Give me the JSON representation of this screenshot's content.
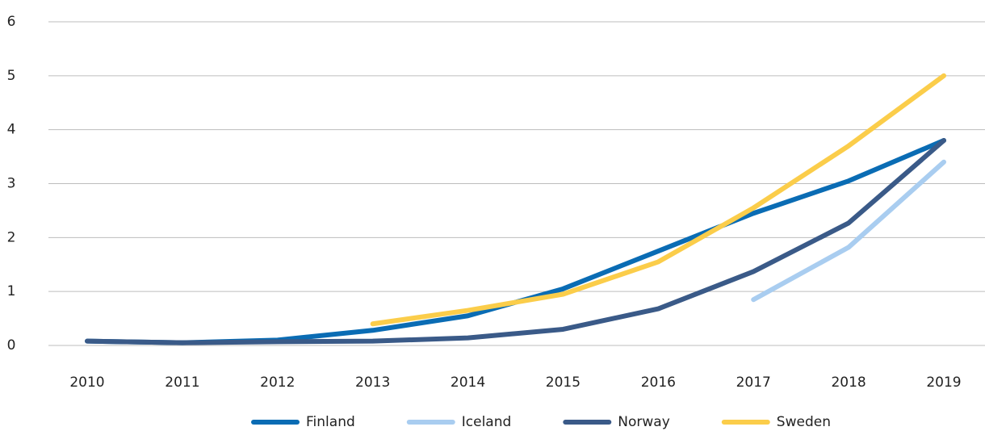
{
  "chart_data": {
    "type": "line",
    "categories": [
      "2010",
      "2011",
      "2012",
      "2013",
      "2014",
      "2015",
      "2016",
      "2017",
      "2018",
      "2019"
    ],
    "series": [
      {
        "name": "Finland",
        "color": "#0a6cb4",
        "values": [
          0.08,
          0.05,
          0.1,
          0.28,
          0.55,
          1.05,
          1.75,
          2.45,
          3.05,
          3.8
        ]
      },
      {
        "name": "Iceland",
        "color": "#a9cdf0",
        "values": [
          null,
          null,
          null,
          null,
          null,
          null,
          null,
          0.85,
          1.82,
          3.4
        ]
      },
      {
        "name": "Norway",
        "color": "#3a5a88",
        "values": [
          0.08,
          0.05,
          0.07,
          0.08,
          0.14,
          0.3,
          0.68,
          1.37,
          2.27,
          3.8
        ]
      },
      {
        "name": "Sweden",
        "color": "#fbcd4a",
        "values": [
          null,
          null,
          null,
          0.4,
          0.65,
          0.95,
          1.55,
          2.55,
          3.7,
          5.0
        ]
      }
    ],
    "ylim": [
      0,
      6
    ],
    "yticks": [
      0,
      1,
      2,
      3,
      4,
      5,
      6
    ],
    "grid": true,
    "legend": "bottom"
  }
}
